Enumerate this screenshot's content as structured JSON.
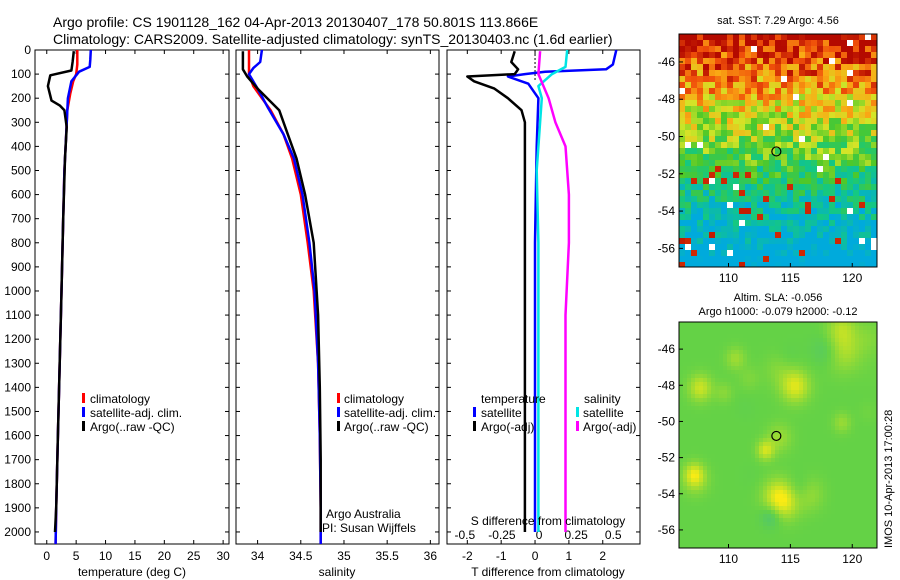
{
  "title": {
    "line1": "Argo profile: CS 1901128_162 04-Apr-2013 20130407_178 50.801S 113.866E",
    "line2": "Climatology: CARS2009. Satellite-adjusted climatology: synTS_20130403.nc (1.6d earlier)"
  },
  "credit": {
    "line1": "Argo Australia",
    "line2": "PI: Susan Wijffels"
  },
  "side_stamp": "IMOS 10-Apr-2013 17:00:28",
  "colors": {
    "climatology": "#ff0000",
    "satellite": "#0000ff",
    "argo": "#000000",
    "satellite_s": "#00e5e5",
    "argo_s": "#ff00ff"
  },
  "chart_data": [
    {
      "type": "line",
      "xlabel": "temperature (deg C)",
      "xlim": [
        -2,
        31
      ],
      "ylim": [
        2050,
        0
      ],
      "xticks": [
        0,
        5,
        10,
        15,
        20,
        25,
        30
      ],
      "xtick_labels": [
        "0",
        "5",
        "10",
        "15",
        "20",
        "25",
        "30"
      ],
      "yticks": [
        0,
        100,
        200,
        300,
        400,
        500,
        600,
        700,
        800,
        900,
        1000,
        1100,
        1200,
        1300,
        1400,
        1500,
        1600,
        1700,
        1800,
        1900,
        2000
      ],
      "ytick_labels": [
        "0",
        "100",
        "200",
        "300",
        "400",
        "500",
        "600",
        "700",
        "800",
        "900",
        "1000",
        "1100",
        "1200",
        "1300",
        "1400",
        "1500",
        "1600",
        "1700",
        "1800",
        "1900",
        "2000"
      ],
      "legend": [
        "climatology",
        "satellite-adj. clim.",
        "Argo(..raw -QC)"
      ],
      "series": [
        {
          "name": "climatology",
          "color": "#ff0000",
          "x": [
            5.2,
            5.2,
            5.0,
            4.5,
            4.0,
            3.5,
            3.3,
            3.0,
            2.8,
            2.5,
            2.2,
            1.9,
            1.6,
            1.5
          ],
          "y": [
            0,
            60,
            100,
            130,
            180,
            250,
            350,
            500,
            700,
            1000,
            1300,
            1600,
            1900,
            2050
          ]
        },
        {
          "name": "satellite-adj. clim.",
          "color": "#0000ff",
          "x": [
            7.5,
            7.4,
            7.3,
            5.5,
            4.2,
            3.6,
            3.3,
            3.0,
            2.8,
            2.5,
            2.2,
            1.9,
            1.6,
            1.5
          ],
          "y": [
            0,
            40,
            70,
            90,
            130,
            200,
            350,
            500,
            700,
            1000,
            1300,
            1600,
            1900,
            2050
          ]
        },
        {
          "name": "Argo(..raw -QC)",
          "color": "#000000",
          "x": [
            4.6,
            4.4,
            4.2,
            0.6,
            0.2,
            0.8,
            2.2,
            3.0,
            3.4,
            3.1,
            2.8,
            2.5,
            2.2,
            1.9,
            1.6,
            1.4
          ],
          "y": [
            5,
            50,
            85,
            105,
            150,
            210,
            230,
            250,
            320,
            450,
            700,
            1000,
            1300,
            1600,
            1900,
            2000
          ]
        }
      ]
    },
    {
      "type": "line",
      "xlabel": "salinity",
      "xlim": [
        33.75,
        36.1
      ],
      "ylim": [
        2050,
        0
      ],
      "xticks": [
        34,
        34.5,
        35,
        35.5,
        36
      ],
      "xtick_labels": [
        "34",
        "34.5",
        "35",
        "35.5",
        "36"
      ],
      "legend": [
        "climatology",
        "satellite-adj. clim.",
        "Argo(..raw -QC)"
      ],
      "series": [
        {
          "name": "climatology",
          "color": "#ff0000",
          "x": [
            33.9,
            33.9,
            33.95,
            34.05,
            34.15,
            34.3,
            34.4,
            34.5,
            34.58,
            34.65,
            34.7,
            34.72,
            34.73,
            34.73
          ],
          "y": [
            0,
            100,
            150,
            200,
            250,
            350,
            450,
            600,
            800,
            1000,
            1300,
            1600,
            1900,
            2050
          ]
        },
        {
          "name": "satellite-adj. clim.",
          "color": "#0000ff",
          "x": [
            34.05,
            34.03,
            33.95,
            33.9,
            34.0,
            34.12,
            34.3,
            34.42,
            34.52,
            34.6,
            34.66,
            34.7,
            34.72,
            34.73,
            34.73
          ],
          "y": [
            0,
            50,
            75,
            100,
            160,
            240,
            350,
            450,
            600,
            800,
            1000,
            1300,
            1600,
            1900,
            2050
          ]
        },
        {
          "name": "Argo(..raw -QC)",
          "color": "#000000",
          "x": [
            33.83,
            33.83,
            33.88,
            34.0,
            34.25,
            34.35,
            34.45,
            34.55,
            34.65,
            34.7,
            34.72,
            34.73,
            34.73
          ],
          "y": [
            5,
            80,
            110,
            160,
            250,
            350,
            450,
            600,
            800,
            1100,
            1400,
            1700,
            2000
          ]
        }
      ]
    },
    {
      "type": "line",
      "xlabel": "T difference from climatology",
      "x2label": "S difference from climatology",
      "xlim": [
        -2.6,
        3.1
      ],
      "ylim": [
        2050,
        0
      ],
      "xticks": [
        -2,
        -1,
        0,
        1,
        2
      ],
      "xtick_labels": [
        "-2",
        "-1",
        "0",
        "1",
        "2"
      ],
      "x2ticks": [
        -0.5,
        -0.25,
        0,
        0.25,
        0.5
      ],
      "x2tick_labels": [
        "-0.5",
        "-0.25",
        "0",
        "0.25",
        "0.5"
      ],
      "legend_temperature_header": "temperature",
      "legend_salinity_header": "salinity",
      "legend_temperature": [
        "satellite",
        "Argo(-adj)"
      ],
      "legend_salinity": [
        "satellite",
        "Argo(-adj)"
      ],
      "series": [
        {
          "name": "satellite",
          "group": "temperature",
          "color": "#0000ff",
          "x": [
            2.4,
            2.3,
            2.1,
            0.3,
            -0.3,
            -0.8,
            -0.2,
            0.1,
            0.05,
            0.0,
            0.0,
            0.0,
            0.0
          ],
          "y": [
            0,
            60,
            80,
            90,
            100,
            110,
            140,
            200,
            400,
            800,
            1200,
            1600,
            2000
          ]
        },
        {
          "name": "Argo(-adj)",
          "group": "temperature",
          "color": "#000000",
          "x": [
            -0.6,
            -0.7,
            -0.5,
            -0.6,
            -2.0,
            -1.8,
            -1.2,
            -0.8,
            -0.4,
            -0.3,
            -0.3,
            -0.3,
            -0.3,
            -0.3,
            -0.3
          ],
          "y": [
            5,
            50,
            80,
            100,
            110,
            130,
            160,
            200,
            250,
            300,
            500,
            800,
            1200,
            1600,
            2000
          ]
        },
        {
          "name": "satellite",
          "group": "salinity",
          "color": "#00e5e5",
          "x": [
            0.95,
            0.9,
            0.5,
            0.1,
            0.2,
            0.15,
            0.05,
            0.1,
            0.1,
            0.1,
            0.1,
            0.1
          ],
          "y": [
            0,
            70,
            100,
            150,
            200,
            300,
            500,
            800,
            1100,
            1400,
            1700,
            2000
          ]
        },
        {
          "name": "Argo(-adj)",
          "group": "salinity",
          "color": "#ff00ff",
          "x": [
            0.15,
            0.1,
            0.4,
            0.6,
            0.9,
            1.0,
            1.0,
            0.9,
            0.9,
            0.9,
            0.9
          ],
          "y": [
            5,
            100,
            200,
            300,
            400,
            600,
            800,
            1100,
            1400,
            1700,
            2000
          ]
        }
      ]
    },
    {
      "type": "heatmap",
      "title": "sat. SST: 7.29 Argo: 4.56",
      "xlim": [
        106,
        122
      ],
      "ylim": [
        -57,
        -44.5
      ],
      "xticks": [
        110,
        115,
        120
      ],
      "xtick_labels": [
        "110",
        "115",
        "120"
      ],
      "yticks": [
        -46,
        -48,
        -50,
        -52,
        -54,
        -56
      ],
      "ytick_labels": [
        "-46",
        "-48",
        "-50",
        "-52",
        "-54",
        "-56"
      ],
      "marker": {
        "x": 113.866,
        "y": -50.801
      }
    },
    {
      "type": "heatmap",
      "title": "Altim. SLA: -0.056",
      "subtitle": "Argo h1000: -0.079 h2000: -0.12",
      "xlim": [
        106,
        122
      ],
      "ylim": [
        -57,
        -44.5
      ],
      "xticks": [
        110,
        115,
        120
      ],
      "xtick_labels": [
        "110",
        "115",
        "120"
      ],
      "yticks": [
        -46,
        -48,
        -50,
        -52,
        -54,
        -56
      ],
      "ytick_labels": [
        "-46",
        "-48",
        "-50",
        "-52",
        "-54",
        "-56"
      ],
      "marker": {
        "x": 113.866,
        "y": -50.801
      }
    }
  ]
}
